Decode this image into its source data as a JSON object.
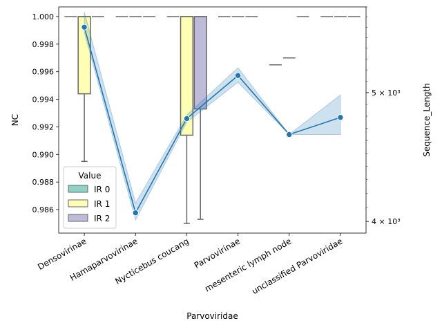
{
  "chart_data": {
    "type": "box+line",
    "x_axis": {
      "label": "Parvoviridae",
      "categories": [
        "Densovirinae",
        "Hamaparvovirinae",
        "Nycticebus coucang",
        "Parvovirinae",
        "mesenteric lymph node",
        "unclassified Parvoviridae"
      ]
    },
    "y_left": {
      "label": "NC",
      "ylim": [
        0.9843,
        1.0007
      ],
      "ticks": [
        0.986,
        0.988,
        0.99,
        0.992,
        0.994,
        0.996,
        0.998,
        1.0
      ],
      "tick_labels": [
        "0.986",
        "0.988",
        "0.990",
        "0.992",
        "0.994",
        "0.996",
        "0.998",
        "1.000"
      ]
    },
    "y_right": {
      "label": "Sequence_Length",
      "scale": "log",
      "ylim": [
        3920,
        5800
      ],
      "ticks": [
        4000,
        5000
      ],
      "tick_labels": [
        "4 × 10³",
        "5 × 10³"
      ]
    },
    "legend": {
      "title": "Value",
      "placement": "lower-left",
      "entries": [
        {
          "label": "IR 0",
          "color": "#8dd3c7"
        },
        {
          "label": "IR 1",
          "color": "#ffffb3"
        },
        {
          "label": "IR 2",
          "color": "#bebada"
        }
      ]
    },
    "boxes": [
      {
        "category": 0,
        "hue": 0,
        "whislo": 1.0,
        "q1": 1.0,
        "med": 1.0,
        "q3": 1.0,
        "whishi": 1.0
      },
      {
        "category": 0,
        "hue": 1,
        "whislo": 0.9895,
        "q1": 0.9944,
        "med": 1.0,
        "q3": 1.0,
        "whishi": 1.0
      },
      {
        "category": 0,
        "hue": 2,
        "whislo": 1.0,
        "q1": 1.0,
        "med": 1.0,
        "q3": 1.0,
        "whishi": 1.0
      },
      {
        "category": 1,
        "hue": 0,
        "whislo": 1.0,
        "q1": 1.0,
        "med": 1.0,
        "q3": 1.0,
        "whishi": 1.0
      },
      {
        "category": 1,
        "hue": 1,
        "whislo": 1.0,
        "q1": 1.0,
        "med": 1.0,
        "q3": 1.0,
        "whishi": 1.0
      },
      {
        "category": 1,
        "hue": 2,
        "whislo": 1.0,
        "q1": 1.0,
        "med": 1.0,
        "q3": 1.0,
        "whishi": 1.0
      },
      {
        "category": 2,
        "hue": 0,
        "whislo": 1.0,
        "q1": 1.0,
        "med": 1.0,
        "q3": 1.0,
        "whishi": 1.0
      },
      {
        "category": 2,
        "hue": 1,
        "whislo": 0.985,
        "q1": 0.9914,
        "med": 1.0,
        "q3": 1.0,
        "whishi": 1.0
      },
      {
        "category": 2,
        "hue": 2,
        "whislo": 0.9853,
        "q1": 0.9933,
        "med": 1.0,
        "q3": 1.0,
        "whishi": 1.0
      },
      {
        "category": 3,
        "hue": 0,
        "whislo": 1.0,
        "q1": 1.0,
        "med": 1.0,
        "q3": 1.0,
        "whishi": 1.0
      },
      {
        "category": 3,
        "hue": 1,
        "whislo": 1.0,
        "q1": 1.0,
        "med": 1.0,
        "q3": 1.0,
        "whishi": 1.0
      },
      {
        "category": 3,
        "hue": 2,
        "whislo": 1.0,
        "q1": 1.0,
        "med": 1.0,
        "q3": 1.0,
        "whishi": 1.0
      },
      {
        "category": 4,
        "hue": 0,
        "whislo": 0.9965,
        "q1": 0.9965,
        "med": 0.9965,
        "q3": 0.9965,
        "whishi": 0.9965
      },
      {
        "category": 4,
        "hue": 1,
        "whislo": 0.997,
        "q1": 0.997,
        "med": 0.997,
        "q3": 0.997,
        "whishi": 0.997
      },
      {
        "category": 4,
        "hue": 2,
        "whislo": 1.0,
        "q1": 1.0,
        "med": 1.0,
        "q3": 1.0,
        "whishi": 1.0
      },
      {
        "category": 5,
        "hue": 0,
        "whislo": 1.0,
        "q1": 1.0,
        "med": 1.0,
        "q3": 1.0,
        "whishi": 1.0
      },
      {
        "category": 5,
        "hue": 1,
        "whislo": 1.0,
        "q1": 1.0,
        "med": 1.0,
        "q3": 1.0,
        "whishi": 1.0
      },
      {
        "category": 5,
        "hue": 2,
        "whislo": 1.0,
        "q1": 1.0,
        "med": 1.0,
        "q3": 1.0,
        "whishi": 1.0
      }
    ],
    "line": {
      "axis": "right",
      "color": "#1f77b4",
      "band_color": "#1f77b4",
      "values": [
        5600,
        4060,
        4780,
        5150,
        4650,
        4790
      ],
      "ci_low": [
        5550,
        4010,
        4750,
        5090,
        4650,
        4650
      ],
      "ci_high": [
        5750,
        4130,
        4810,
        5220,
        4650,
        4980
      ]
    }
  }
}
